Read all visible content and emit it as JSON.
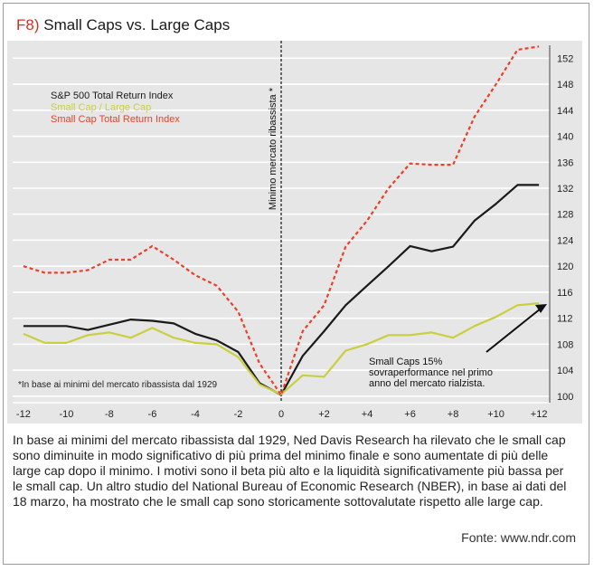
{
  "figure": {
    "label": "F8)",
    "title": "Small Caps vs. Large Caps"
  },
  "caption": "In base ai minimi del mercato ribassista dal 1929, Ned Davis Research ha rilevato che le small cap sono diminuite in modo significativo di più prima del minimo finale e sono aumentate di più delle large cap dopo il minimo. I motivi sono il beta più alto e la liquidità significativamente più bassa per le small cap. Un altro studio del National Bureau of Economic Research (NBER), in base ai dati del 18 marzo, ha mostrato che le small cap sono storicamente sottovalutate rispetto alle large cap.",
  "source": "Fonte: www.ndr.com",
  "chart_data": {
    "type": "line",
    "x_ticks": [
      "-12",
      "-10",
      "-8",
      "-6",
      "-4",
      "-2",
      "0",
      "+2",
      "+4",
      "+6",
      "+8",
      "+10",
      "+12"
    ],
    "xlim": [
      -12.5,
      12.5
    ],
    "ylim": [
      99,
      154
    ],
    "y_ticks": [
      "100",
      "104",
      "108",
      "112",
      "116",
      "120",
      "124",
      "128",
      "132",
      "136",
      "140",
      "144",
      "148",
      "152"
    ],
    "grid": "horizontal",
    "y_axis_position": "right",
    "legend_position": "top-left",
    "series": [
      {
        "name": "S&P 500 Total Return Index",
        "color": "#1a1a1a",
        "style": "solid",
        "x": [
          -12,
          -11,
          -10,
          -9,
          -8,
          -7,
          -6,
          -5,
          -4,
          -3,
          -2,
          -1,
          0,
          1,
          2,
          3,
          4,
          5,
          6,
          7,
          8,
          9,
          10,
          11,
          12
        ],
        "y": [
          110.8,
          110.8,
          110.8,
          110.2,
          111.0,
          111.8,
          111.6,
          111.2,
          109.6,
          108.6,
          106.8,
          102.0,
          100.2,
          106.2,
          110.0,
          114.0,
          117.0,
          120.0,
          123.1,
          122.3,
          123.0,
          127.0,
          129.6,
          132.5,
          132.5
        ]
      },
      {
        "name": "Small Cap / Large Cap",
        "color": "#c9cf3f",
        "style": "solid",
        "x": [
          -12,
          -11,
          -10,
          -9,
          -8,
          -7,
          -6,
          -5,
          -4,
          -3,
          -2,
          -1,
          0,
          1,
          2,
          3,
          4,
          5,
          6,
          7,
          8,
          9,
          10,
          11,
          12
        ],
        "y": [
          109.6,
          108.2,
          108.2,
          109.4,
          109.8,
          109.0,
          110.5,
          109.0,
          108.2,
          108.0,
          106.0,
          101.8,
          100.3,
          103.2,
          103.0,
          107.0,
          108.0,
          109.4,
          109.4,
          109.8,
          109.0,
          110.8,
          112.2,
          114.0,
          114.3
        ]
      },
      {
        "name": "Small Cap Total Return Index",
        "color": "#e8412b",
        "style": "dashed",
        "x": [
          -12,
          -11,
          -10,
          -9,
          -8,
          -7,
          -6,
          -5,
          -4,
          -3,
          -2,
          -1,
          0,
          1,
          2,
          3,
          4,
          5,
          6,
          7,
          8,
          9,
          10,
          11,
          12
        ],
        "y": [
          120.0,
          119.0,
          119.0,
          119.4,
          121.0,
          121.0,
          123.1,
          121.0,
          118.6,
          117.0,
          113.0,
          105.0,
          100.2,
          110.0,
          114.0,
          123.0,
          127.0,
          132.0,
          135.8,
          135.6,
          135.6,
          143.0,
          148.0,
          153.3,
          153.8
        ]
      }
    ],
    "vertical_line": {
      "x": 0,
      "label": "Minimo mercato ribassista *"
    },
    "annotations": {
      "footnote": "*In base ai minimi del mercato ribassista dal 1929",
      "callout_lines": [
        "Small Caps 15%",
        "sovraperformance nel primo",
        "anno del mercato rialzista."
      ]
    }
  }
}
